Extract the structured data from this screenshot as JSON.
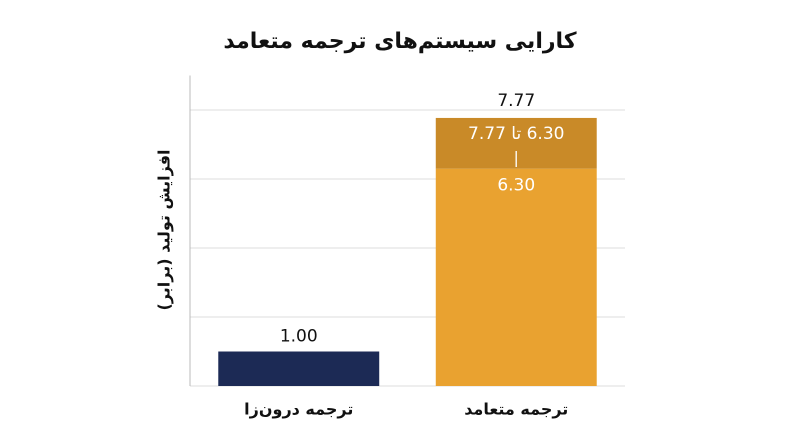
{
  "chart_data": {
    "type": "bar",
    "title": "کارایی سیستم‌های ترجمه متعامد",
    "y_label": "افزایش تولید (برابر)",
    "categories": [
      "ترجمه درون‌زا",
      "ترجمه متعامد"
    ],
    "values": [
      1,
      6.3
    ],
    "value_labels": [
      "1.00",
      "6.30"
    ],
    "colors": [
      "#1c2a55",
      "#e9a230"
    ],
    "range_low": [
      null,
      6.3
    ],
    "range_high": [
      null,
      7.77
    ],
    "range_labels": [
      null,
      "6.30 تا 7.77"
    ],
    "range_separator": "|",
    "range_color": "#c98a28",
    "ylim": [
      0,
      9
    ],
    "yticks": [
      0,
      2,
      4,
      6,
      8
    ],
    "grid": true
  }
}
